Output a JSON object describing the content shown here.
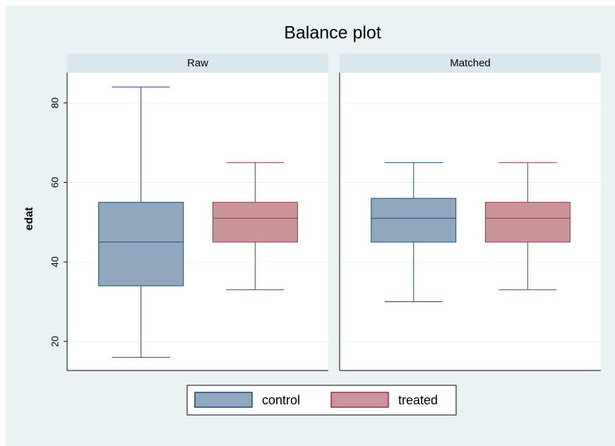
{
  "title": "Balance plot",
  "ylabel": "edat",
  "chart_data": [
    {
      "type": "box",
      "title": "Raw",
      "ylim": [
        12.7,
        87.6
      ],
      "yticks": [
        20,
        40,
        60,
        80
      ],
      "grid": true,
      "series": [
        {
          "name": "control",
          "color": "#90a8bd",
          "edge": "#1a476f",
          "min": 16,
          "q1": 34,
          "median": 45,
          "q3": 55,
          "max": 84
        },
        {
          "name": "treated",
          "color": "#c9959a",
          "edge": "#90353b",
          "min": 33,
          "q1": 45,
          "median": 51,
          "q3": 55,
          "max": 65
        }
      ]
    },
    {
      "type": "box",
      "title": "Matched",
      "ylim": [
        12.7,
        87.6
      ],
      "yticks": [
        20,
        40,
        60,
        80
      ],
      "grid": true,
      "series": [
        {
          "name": "control",
          "color": "#90a8bd",
          "edge": "#1a476f",
          "min": 30,
          "q1": 45,
          "median": 51,
          "q3": 56,
          "max": 65
        },
        {
          "name": "treated",
          "color": "#c9959a",
          "edge": "#90353b",
          "min": 33,
          "q1": 45,
          "median": 51,
          "q3": 55,
          "max": 65
        }
      ]
    }
  ]
}
